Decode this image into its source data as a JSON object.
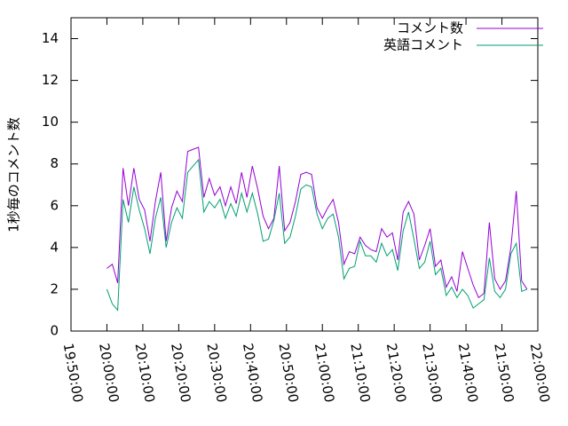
{
  "chart_data": {
    "type": "line",
    "ylabel": "1秒毎のコメント数",
    "x": [
      "20:00:00",
      "20:01:30",
      "20:03:00",
      "20:04:30",
      "20:06:00",
      "20:07:30",
      "20:09:00",
      "20:10:30",
      "20:12:00",
      "20:13:30",
      "20:15:00",
      "20:16:30",
      "20:18:00",
      "20:19:30",
      "20:21:00",
      "20:22:30",
      "20:24:00",
      "20:25:30",
      "20:27:00",
      "20:28:30",
      "20:30:00",
      "20:31:30",
      "20:33:00",
      "20:34:30",
      "20:36:00",
      "20:37:30",
      "20:39:00",
      "20:40:30",
      "20:42:00",
      "20:43:30",
      "20:45:00",
      "20:46:30",
      "20:48:00",
      "20:49:30",
      "20:51:00",
      "20:52:30",
      "20:54:00",
      "20:55:30",
      "20:57:00",
      "20:58:30",
      "21:00:00",
      "21:01:30",
      "21:03:00",
      "21:04:30",
      "21:06:00",
      "21:07:30",
      "21:09:00",
      "21:10:30",
      "21:12:00",
      "21:13:30",
      "21:15:00",
      "21:16:30",
      "21:18:00",
      "21:19:30",
      "21:21:00",
      "21:22:30",
      "21:24:00",
      "21:25:30",
      "21:27:00",
      "21:28:30",
      "21:30:00",
      "21:31:30",
      "21:33:00",
      "21:34:30",
      "21:36:00",
      "21:37:30",
      "21:39:00",
      "21:40:30",
      "21:42:00",
      "21:43:30",
      "21:45:00",
      "21:46:30",
      "21:48:00",
      "21:49:30",
      "21:51:00",
      "21:52:30",
      "21:54:00",
      "21:55:30",
      "21:57:00"
    ],
    "series": [
      {
        "name": "コメント数",
        "color": "#9400d3",
        "values": [
          3.0,
          3.2,
          2.3,
          7.8,
          6.0,
          7.8,
          6.3,
          5.8,
          4.3,
          6.2,
          7.6,
          4.3,
          5.9,
          6.7,
          6.2,
          8.6,
          8.7,
          8.8,
          6.4,
          7.3,
          6.5,
          6.9,
          6.0,
          6.9,
          6.1,
          7.6,
          6.4,
          7.9,
          6.8,
          5.5,
          4.9,
          5.4,
          7.9,
          4.8,
          5.2,
          6.2,
          7.5,
          7.6,
          7.5,
          5.9,
          5.4,
          5.9,
          6.3,
          5.2,
          3.2,
          3.8,
          3.7,
          4.5,
          4.1,
          3.9,
          3.8,
          4.9,
          4.5,
          4.7,
          3.4,
          5.7,
          6.2,
          5.6,
          3.4,
          4.1,
          4.9,
          3.1,
          3.4,
          2.1,
          2.6,
          1.9,
          3.8,
          3.0,
          2.2,
          1.6,
          1.8,
          5.2,
          2.5,
          2.0,
          2.4,
          4.0,
          6.7,
          2.4,
          2.0
        ]
      },
      {
        "name": "英語コメント",
        "color": "#009e73",
        "values": [
          2.0,
          1.3,
          1.0,
          6.3,
          5.2,
          6.9,
          5.8,
          4.9,
          3.7,
          5.4,
          6.4,
          4.0,
          5.2,
          5.9,
          5.4,
          7.6,
          7.9,
          8.2,
          5.7,
          6.2,
          5.9,
          6.3,
          5.4,
          6.1,
          5.5,
          6.6,
          5.7,
          6.6,
          5.6,
          4.3,
          4.4,
          5.3,
          6.6,
          4.2,
          4.5,
          5.5,
          6.8,
          7.0,
          6.9,
          5.6,
          4.9,
          5.4,
          5.6,
          4.5,
          2.5,
          3.0,
          3.1,
          4.3,
          3.6,
          3.6,
          3.3,
          4.2,
          3.6,
          3.9,
          2.9,
          4.8,
          5.7,
          4.4,
          3.0,
          3.3,
          4.3,
          2.7,
          3.0,
          1.7,
          2.1,
          1.6,
          2.0,
          1.7,
          1.1,
          1.3,
          1.5,
          3.5,
          1.9,
          1.6,
          2.0,
          3.7,
          4.2,
          1.9,
          2.0
        ]
      }
    ],
    "xlim": [
      "19:50:00",
      "22:00:00"
    ],
    "xticks": [
      "19:50:00",
      "20:00:00",
      "20:10:00",
      "20:20:00",
      "20:30:00",
      "20:40:00",
      "20:50:00",
      "21:00:00",
      "21:10:00",
      "21:20:00",
      "21:30:00",
      "21:40:00",
      "21:50:00",
      "22:00:00"
    ],
    "ylim": [
      0,
      15
    ],
    "yticks": [
      0,
      2,
      4,
      6,
      8,
      10,
      12,
      14
    ],
    "grid": false,
    "legend": "top-right"
  }
}
